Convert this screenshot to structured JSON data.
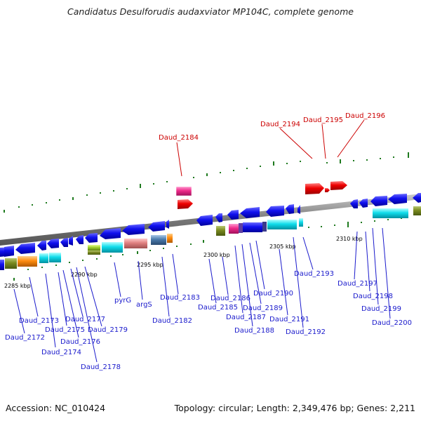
{
  "title": "Candidatus Desulforudis audaxviator MP104C, complete genome",
  "footer": {
    "accession": "Accession: NC_010424",
    "summary": "Topology: circular; Length: 2,349,476 bp; Genes: 2,211"
  },
  "colors": {
    "backbone": "#8a8a8a",
    "gene_label_default": "#1a1acc",
    "gene_label_highlight": "#cc0000",
    "tick": "#1f7a1f"
  },
  "scale_labels": [
    "2285 kbp",
    "2290 kbp",
    "2295 kbp",
    "2300 kbp",
    "2305 kbp",
    "2310 kbp"
  ],
  "genes_forward_highlighted": [
    "Daud_2184",
    "Daud_2194",
    "Daud_2195",
    "Daud_2196"
  ],
  "genes_reverse": [
    "Daud_2172",
    "Daud_2173",
    "Daud_2174",
    "Daud_2175",
    "Daud_2176",
    "Daud_2177",
    "Daud_2178",
    "Daud_2179",
    "pyrG",
    "argS",
    "Daud_2182",
    "Daud_2183",
    "Daud_2185",
    "Daud_2186",
    "Daud_2187",
    "Daud_2188",
    "Daud_2189",
    "Daud_2190",
    "Daud_2191",
    "Daud_2192",
    "Daud_2193",
    "Daud_2197",
    "Daud_2198",
    "Daud_2199",
    "Daud_2200"
  ]
}
